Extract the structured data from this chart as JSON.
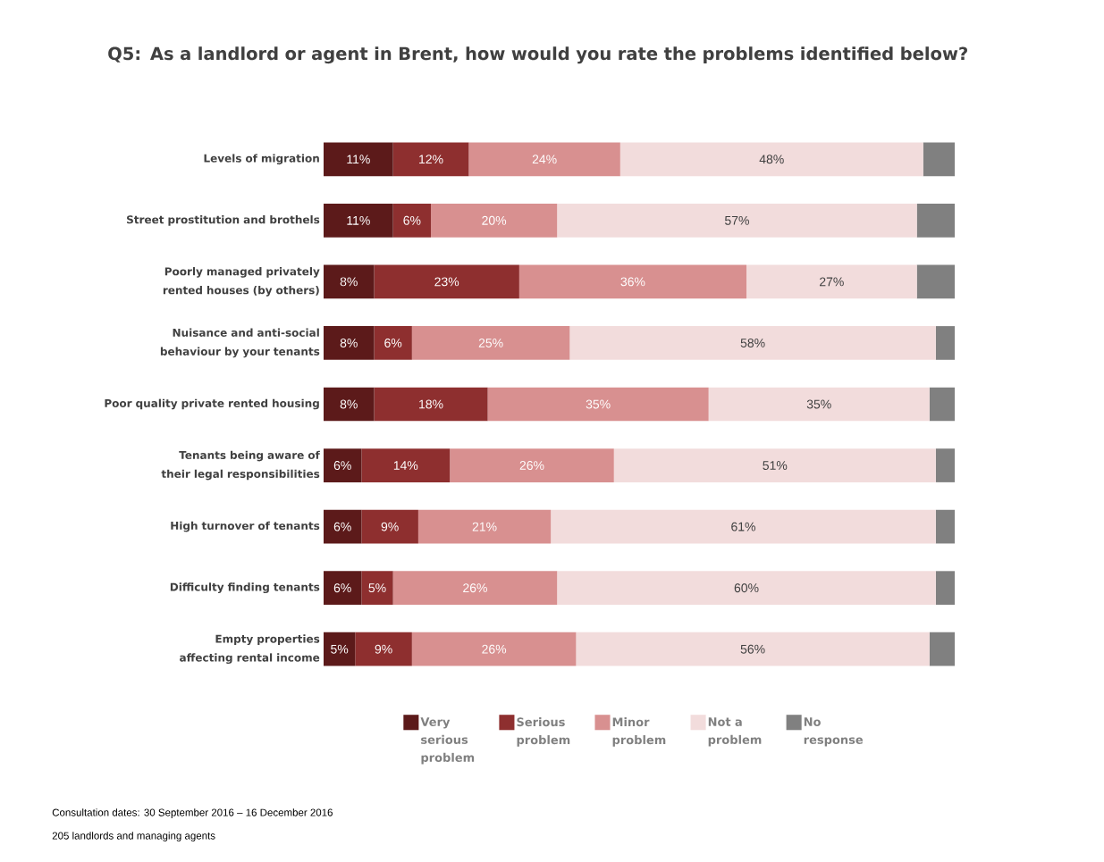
{
  "chart_data": {
    "type": "bar",
    "orientation": "horizontal",
    "stacked": true,
    "legend": "bottom",
    "title": "Q5: As a landlord or agent in Brent, how would you rate the problems identified below?",
    "categories": [
      "Levels of migration",
      "Street prostitution and brothels",
      "Poorly managed privately rented houses (by others)",
      "Nuisance and anti-social behaviour by your tenants",
      "Poor quality private rented housing",
      "Tenants being aware of their legal responsibilities",
      "High turnover of tenants",
      "Difficulty finding tenants",
      "Empty properties affecting rental income"
    ],
    "series": [
      {
        "name": "Very serious problem",
        "color": "#5c1a1a",
        "values": [
          11,
          11,
          8,
          8,
          8,
          6,
          6,
          6,
          5
        ],
        "value_labels": [
          "11%",
          "11%",
          "8%",
          "8%",
          "8%",
          "6%",
          "6%",
          "6%",
          "5%"
        ]
      },
      {
        "name": "Serious problem",
        "color": "#8e2f2f",
        "values": [
          12,
          6,
          23,
          6,
          18,
          14,
          9,
          5,
          9
        ],
        "value_labels": [
          "12%",
          "6%",
          "23%",
          "6%",
          "18%",
          "14%",
          "9%",
          "5%",
          "9%"
        ]
      },
      {
        "name": "Minor problem",
        "color": "#d89090",
        "values": [
          24,
          20,
          36,
          25,
          35,
          26,
          21,
          26,
          26
        ],
        "value_labels": [
          "24%",
          "20%",
          "36%",
          "25%",
          "35%",
          "26%",
          "21%",
          "26%",
          "26%"
        ]
      },
      {
        "name": "Not a problem",
        "color": "#f2dcdc",
        "values": [
          48,
          57,
          27,
          58,
          35,
          51,
          61,
          60,
          56
        ],
        "value_labels": [
          "48%",
          "57%",
          "27%",
          "58%",
          "35%",
          "51%",
          "61%",
          "60%",
          "56%"
        ]
      },
      {
        "name": "No response",
        "color": "#808080",
        "values": [
          5,
          6,
          6,
          3,
          4,
          3,
          3,
          3,
          4
        ],
        "value_labels": [
          null,
          null,
          null,
          null,
          null,
          null,
          null,
          null,
          null
        ]
      }
    ],
    "annotations": [
      "Consultation dates: 30 September 2016 – 16 December 2016",
      "205 landlords and managing agents"
    ]
  }
}
